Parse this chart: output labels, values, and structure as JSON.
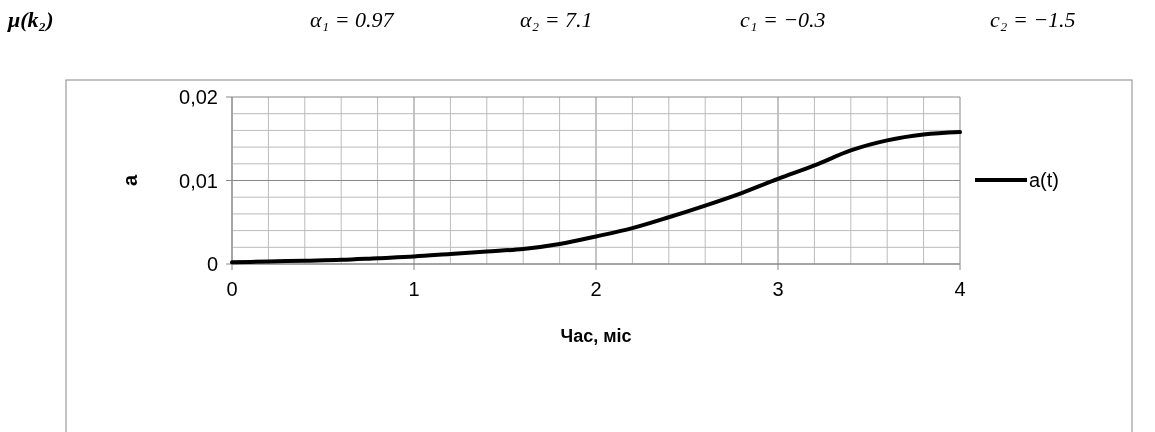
{
  "chart_data": {
    "type": "line",
    "title": "μ(k₂)",
    "annotations": [
      "α₁ = 0.97",
      "α₂ = 7.1",
      "c₁ = −0.3",
      "c₂ = −1.5"
    ],
    "xlabel": "Час, міс",
    "ylabel": "a",
    "x": [
      0,
      0.2,
      0.4,
      0.6,
      0.8,
      1,
      1.2,
      1.4,
      1.6,
      1.8,
      2,
      2.2,
      2.4,
      2.6,
      2.8,
      3,
      3.2,
      3.4,
      3.6,
      3.8,
      4
    ],
    "series": [
      {
        "name": "a(t)",
        "color": "#000000",
        "values": [
          0.0002,
          0.0003,
          0.0004,
          0.0005,
          0.0007,
          0.0009,
          0.0012,
          0.0015,
          0.0018,
          0.0024,
          0.0033,
          0.0043,
          0.0056,
          0.007,
          0.0085,
          0.0102,
          0.0118,
          0.0136,
          0.0148,
          0.0155,
          0.0158
        ]
      }
    ],
    "xlim": [
      0,
      4
    ],
    "ylim": [
      0,
      0.02
    ],
    "xticks": [
      0,
      {
        "value": 0.2,
        "label": null
      },
      {
        "value": 0.4,
        "label": null
      },
      {
        "value": 0.6,
        "label": null
      },
      {
        "value": 0.8,
        "label": null
      },
      1,
      {
        "value": 1.2,
        "label": null
      },
      {
        "value": 1.4,
        "label": null
      },
      {
        "value": 1.6,
        "label": null
      },
      {
        "value": 1.8,
        "label": null
      },
      2,
      {
        "value": 2.2,
        "label": null
      },
      {
        "value": 2.4,
        "label": null
      },
      {
        "value": 2.6,
        "label": null
      },
      {
        "value": 2.8,
        "label": null
      },
      3,
      {
        "value": 3.2,
        "label": null
      },
      {
        "value": 3.4,
        "label": null
      },
      {
        "value": 3.6,
        "label": null
      },
      {
        "value": 3.8,
        "label": null
      },
      4
    ],
    "yticks": [
      {
        "value": 0,
        "label": "0"
      },
      {
        "value": 0.002,
        "label": null
      },
      {
        "value": 0.004,
        "label": null
      },
      {
        "value": 0.006,
        "label": null
      },
      {
        "value": 0.008,
        "label": null
      },
      {
        "value": 0.01,
        "label": "0,01"
      },
      {
        "value": 0.012,
        "label": null
      },
      {
        "value": 0.014,
        "label": null
      },
      {
        "value": 0.016,
        "label": null
      },
      {
        "value": 0.018,
        "label": null
      },
      {
        "value": 0.02,
        "label": "0,02"
      }
    ],
    "grid": true,
    "legend": "right",
    "marker": "none",
    "line_style": "solid"
  }
}
